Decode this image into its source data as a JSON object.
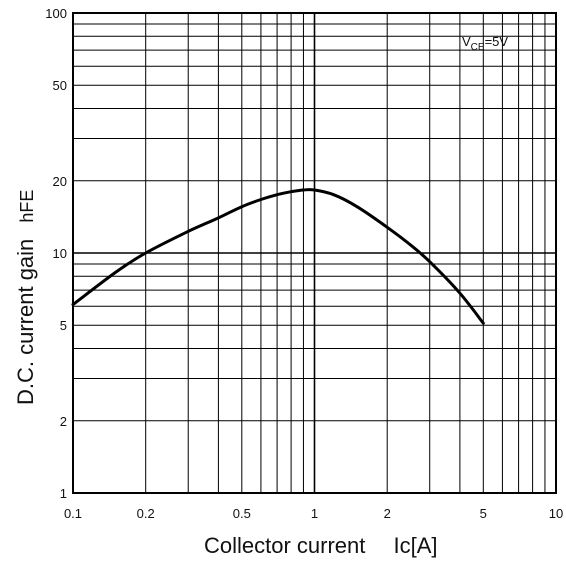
{
  "chart_data": {
    "type": "line",
    "xlabel": "Collector current",
    "xlabel_symbol": "Ic[A]",
    "ylabel": "D.C. current gain",
    "ylabel_symbol": "hFE",
    "x_scale": "log",
    "y_scale": "log",
    "xlim": [
      0.1,
      10
    ],
    "ylim": [
      1,
      100
    ],
    "x_ticks": [
      {
        "value": 0.1,
        "label": "0.1"
      },
      {
        "value": 0.2,
        "label": "0.2"
      },
      {
        "value": 0.5,
        "label": "0.5"
      },
      {
        "value": 1,
        "label": "1"
      },
      {
        "value": 2,
        "label": "2"
      },
      {
        "value": 5,
        "label": "5"
      },
      {
        "value": 10,
        "label": "10"
      }
    ],
    "y_ticks": [
      {
        "value": 1,
        "label": "1"
      },
      {
        "value": 2,
        "label": "2"
      },
      {
        "value": 5,
        "label": "5"
      },
      {
        "value": 10,
        "label": "10"
      },
      {
        "value": 20,
        "label": "20"
      },
      {
        "value": 50,
        "label": "50"
      },
      {
        "value": 100,
        "label": "100"
      }
    ],
    "grid": true,
    "annotation": {
      "main": "V",
      "sub": "CE",
      "rest": "=5V"
    },
    "series": [
      {
        "color": "#000000",
        "x": [
          0.1,
          0.15,
          0.2,
          0.3,
          0.4,
          0.5,
          0.6,
          0.7,
          0.8,
          0.9,
          1.0,
          1.2,
          1.5,
          2.0,
          2.5,
          3.0,
          4.0,
          5.0
        ],
        "y": [
          6.1,
          8.3,
          10.0,
          12.3,
          14.0,
          15.6,
          16.7,
          17.5,
          18.0,
          18.3,
          18.3,
          17.5,
          15.6,
          12.8,
          10.8,
          9.2,
          6.8,
          5.1
        ]
      }
    ]
  }
}
